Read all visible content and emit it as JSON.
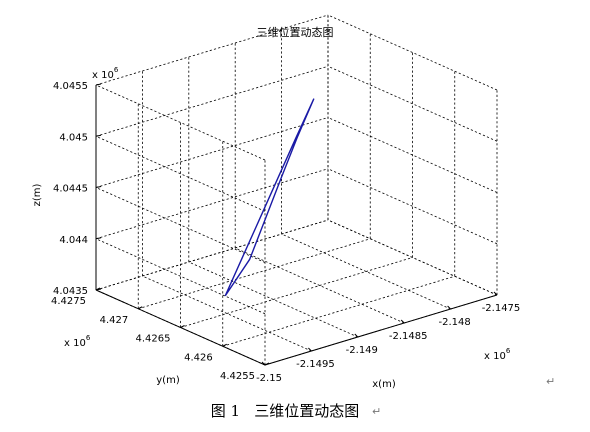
{
  "chart_data": {
    "type": "line",
    "title": "三维位置动态图",
    "xlabel": "x(m)",
    "ylabel": "y(m)",
    "zlabel": "z(m)",
    "x_ticks": [
      "-2.15",
      "-2.1495",
      "-2.149",
      "-2.1485",
      "-2.148",
      "-2.1475"
    ],
    "y_ticks": [
      "4.4255",
      "4.426",
      "4.4265",
      "4.427",
      "4.4275"
    ],
    "z_ticks": [
      "4.0435",
      "4.044",
      "4.0445",
      "4.045",
      "4.0455"
    ],
    "x_exponent": "x 10",
    "y_exponent": "x 10",
    "z_exponent": "x 10",
    "exponent_power": "6",
    "x_multiplier": 1000000,
    "y_multiplier": 1000000,
    "z_multiplier": 1000000,
    "xlim": [
      -2150000,
      -2147500
    ],
    "ylim": [
      4425500,
      4427500
    ],
    "zlim": [
      4043500,
      4045500
    ],
    "grid": true,
    "box": true,
    "line_color": "#1a1aa6",
    "series": [
      {
        "x": [
          -2149700,
          -2149400,
          -2149100,
          -2148800,
          -2148500,
          -2148200,
          -2148500,
          -2148800,
          -2149100,
          -2149400,
          -2149700
        ],
        "y": [
          4426300,
          4426420,
          4426540,
          4426660,
          4426780,
          4426900,
          4426760,
          4426620,
          4426480,
          4426340,
          4426300
        ],
        "z": [
          4043800,
          4044060,
          4044320,
          4044580,
          4044840,
          4045090,
          4044860,
          4044600,
          4044330,
          4044060,
          4043800
        ]
      }
    ]
  },
  "caption": "图 1   三维位置动态图",
  "paragraph_marks": [
    "↵",
    "↵"
  ]
}
